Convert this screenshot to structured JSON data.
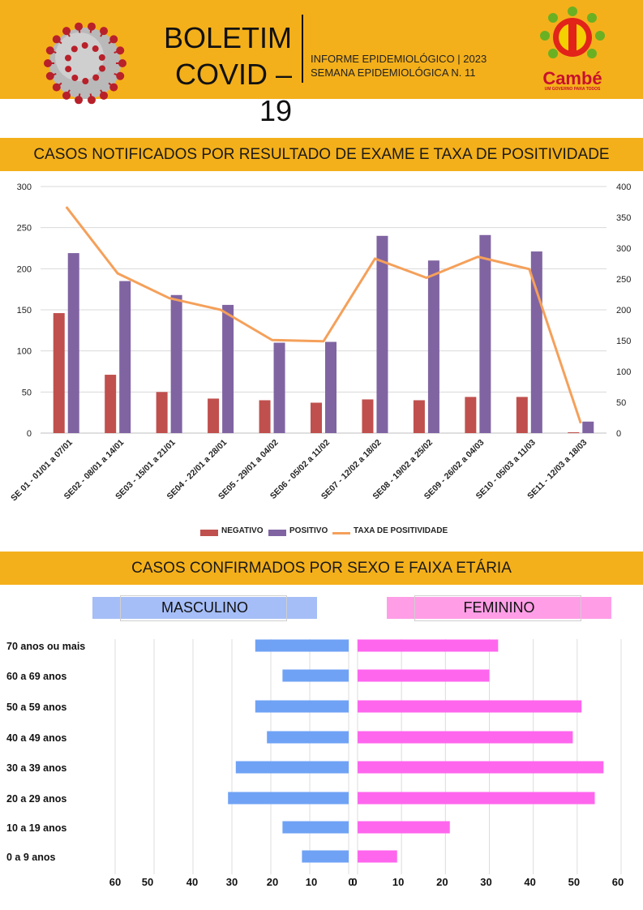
{
  "header": {
    "title_line1": "BOLETIM",
    "title_line2": "COVID – 19",
    "subtitle_line1": "INFORME EPIDEMIOLÓGICO | 2023",
    "subtitle_line2": "SEMANA EPIDEMIOLÓGICA  N. 11",
    "logo_name": "Cambé",
    "logo_tagline": "UM GOVERNO PARA TODOS"
  },
  "section1": {
    "title": "CASOS NOTIFICADOS POR RESULTADO DE EXAME E TAXA DE POSITIVIDADE"
  },
  "section2": {
    "title": "CASOS CONFIRMADOS POR SEXO E FAIXA ETÁRIA",
    "male_label": "MASCULINO",
    "female_label": "FEMININO"
  },
  "colors": {
    "band": "#f4b01a",
    "negativo": "#c0504d",
    "positivo": "#8064a2",
    "taxa": "#f5a05a",
    "masculino": "#6fa2f5",
    "feminino": "#ff66ee",
    "male_header": "#a6bef7",
    "female_header": "#ff9ee6"
  },
  "chart_data": [
    {
      "type": "bar",
      "categories": [
        "SE 01 - 01/01 a 07/01",
        "SE02 - 08/01 a 14/01",
        "SE03 - 15/01 a 21/01",
        "SE04 - 22/01 a 28/01",
        "SE05 - 29/01 a 04/02",
        "SE06 - 05/02 a 11/02",
        "SE07 - 12/02 a 18/02",
        "SE08 - 19/02 a 25/02",
        "SE09 - 26/02 a 04/03",
        "SE10 - 05/03 a 11/03",
        "SE11 - 12/03 a 18/03"
      ],
      "series": [
        {
          "name": "NEGATIVO",
          "axis": "left",
          "values": [
            146,
            71,
            50,
            42,
            40,
            37,
            41,
            40,
            44,
            44,
            1
          ]
        },
        {
          "name": "POSITIVO",
          "axis": "left",
          "values": [
            219,
            185,
            168,
            156,
            110,
            111,
            240,
            210,
            241,
            221,
            14
          ]
        },
        {
          "name": "TAXA DE POSITIVIDADE",
          "axis": "right",
          "type": "line",
          "values": [
            367,
            259,
            219,
            200,
            151,
            149,
            283,
            252,
            286,
            266,
            16
          ]
        }
      ],
      "ylim": [
        0,
        300
      ],
      "y2lim": [
        0,
        400
      ],
      "yticks": [
        0,
        50,
        100,
        150,
        200,
        250,
        300
      ],
      "y2ticks": [
        0,
        50,
        100,
        150,
        200,
        250,
        300,
        350,
        400
      ],
      "grid": true,
      "legend": "bottom"
    },
    {
      "type": "bar",
      "orientation": "horizontal",
      "categories": [
        "70 anos ou mais",
        "60 a 69 anos",
        "50 a 59 anos",
        "40 a 49 anos",
        "30 a 39 anos",
        "20 a 29 anos",
        "10 a 19 anos",
        "0 a 9 anos"
      ],
      "series": [
        {
          "name": "MASCULINO",
          "values": [
            24,
            17,
            24,
            21,
            29,
            31,
            17,
            12
          ]
        },
        {
          "name": "FEMININO",
          "values": [
            32,
            30,
            51,
            49,
            56,
            54,
            21,
            9
          ]
        }
      ],
      "male_ticks": [
        "60",
        "50",
        "40",
        "30",
        "20",
        "10",
        "0"
      ],
      "female_ticks": [
        "0",
        "10",
        "20",
        "30",
        "40",
        "50",
        "60"
      ],
      "xlim": [
        0,
        60
      ],
      "grid": true
    }
  ]
}
